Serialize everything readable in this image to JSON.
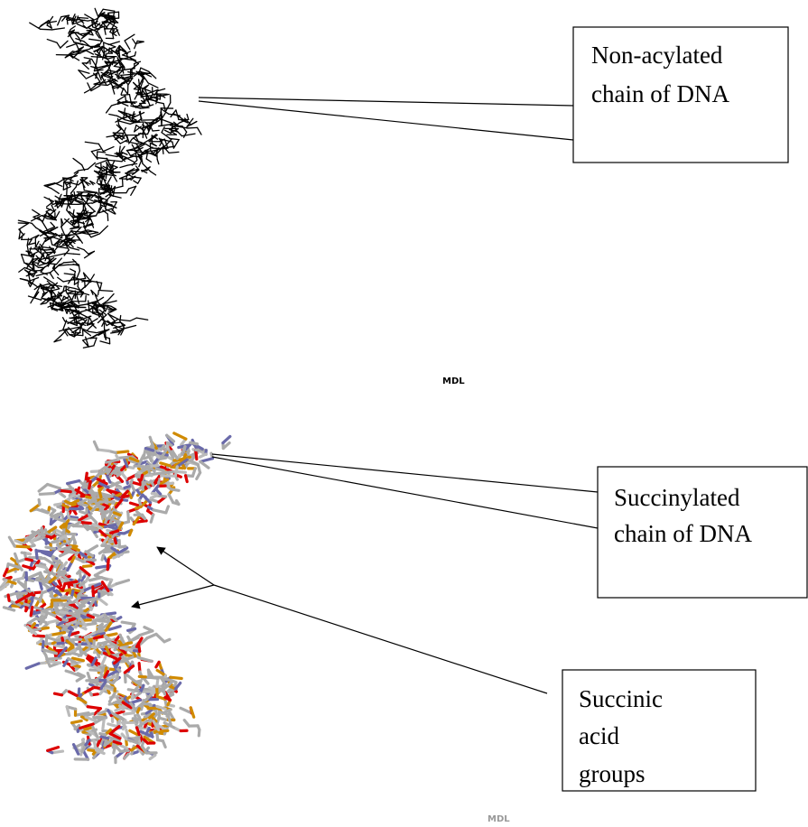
{
  "callouts": [
    {
      "lines": [
        "Non-acylated",
        "chain of DNA"
      ]
    },
    {
      "lines": [
        "Succinylated",
        "chain of DNA"
      ]
    },
    {
      "lines": [
        "Succinic",
        "acid",
        "groups"
      ]
    }
  ],
  "watermarks": [
    "MDL",
    "MDL"
  ]
}
